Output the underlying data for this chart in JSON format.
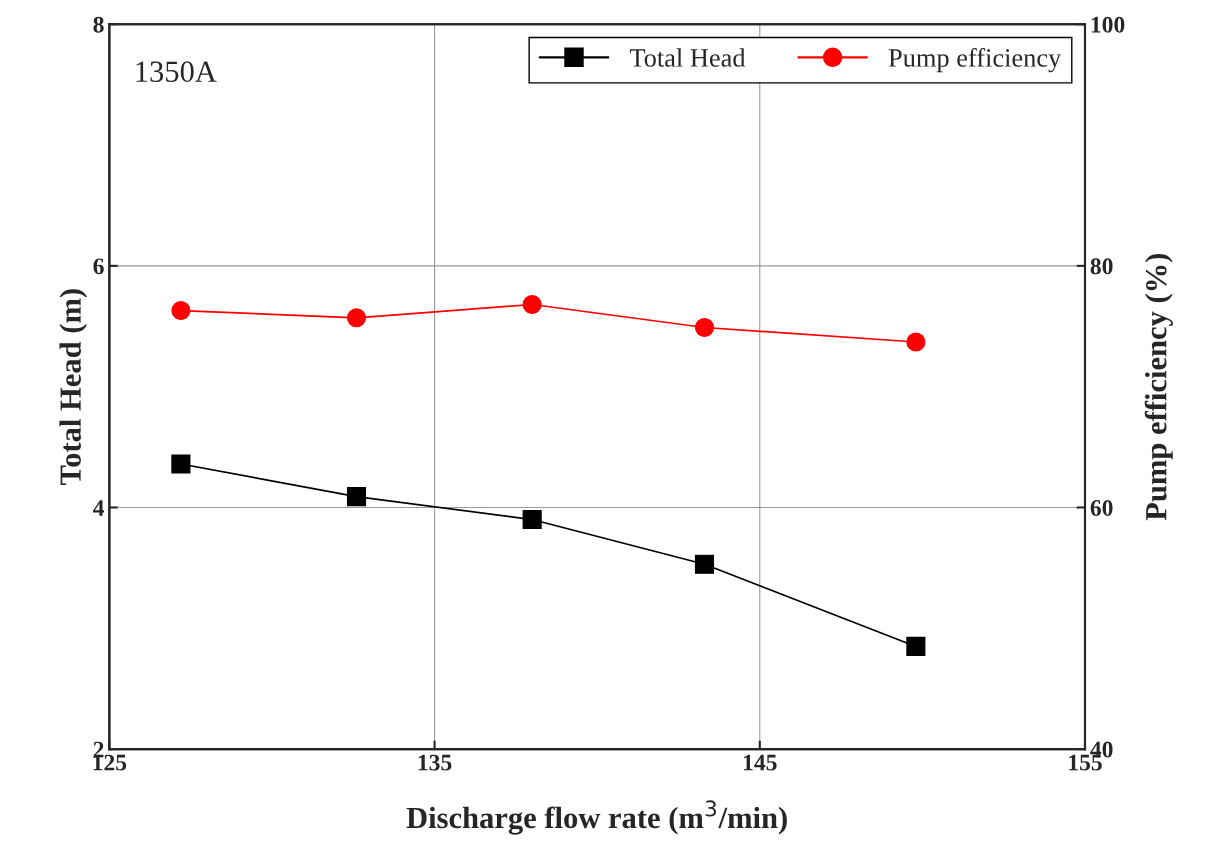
{
  "chart_data": {
    "type": "line",
    "xlabel": "Discharge flow rate (m$^{3}$/min)",
    "ylabel": "Total Head (m)",
    "y2label": "Pump efficiency (%)",
    "annotations": [
      "1350A"
    ],
    "x": [
      127.2,
      132.6,
      138.0,
      143.3,
      149.8
    ],
    "series": [
      {
        "name": "Total Head",
        "color": "#000000",
        "marker": "square",
        "values": [
          4.36,
          4.09,
          3.9,
          3.53,
          2.85
        ]
      },
      {
        "name": "Pump efficiency",
        "color": "#ff0000",
        "marker": "circle",
        "axis": "y2",
        "values": [
          76.3,
          75.7,
          76.8,
          74.9,
          73.7
        ]
      }
    ],
    "xlim": [
      125,
      155
    ],
    "xticks": [
      125,
      135,
      145,
      155
    ],
    "ylim": [
      2,
      8
    ],
    "yticks": [
      2,
      4,
      6,
      8
    ],
    "y2lim": [
      40,
      100
    ],
    "y2ticks": [
      40,
      60,
      80,
      100
    ],
    "grid": true,
    "legend": "top right",
    "line_style": "solid"
  }
}
